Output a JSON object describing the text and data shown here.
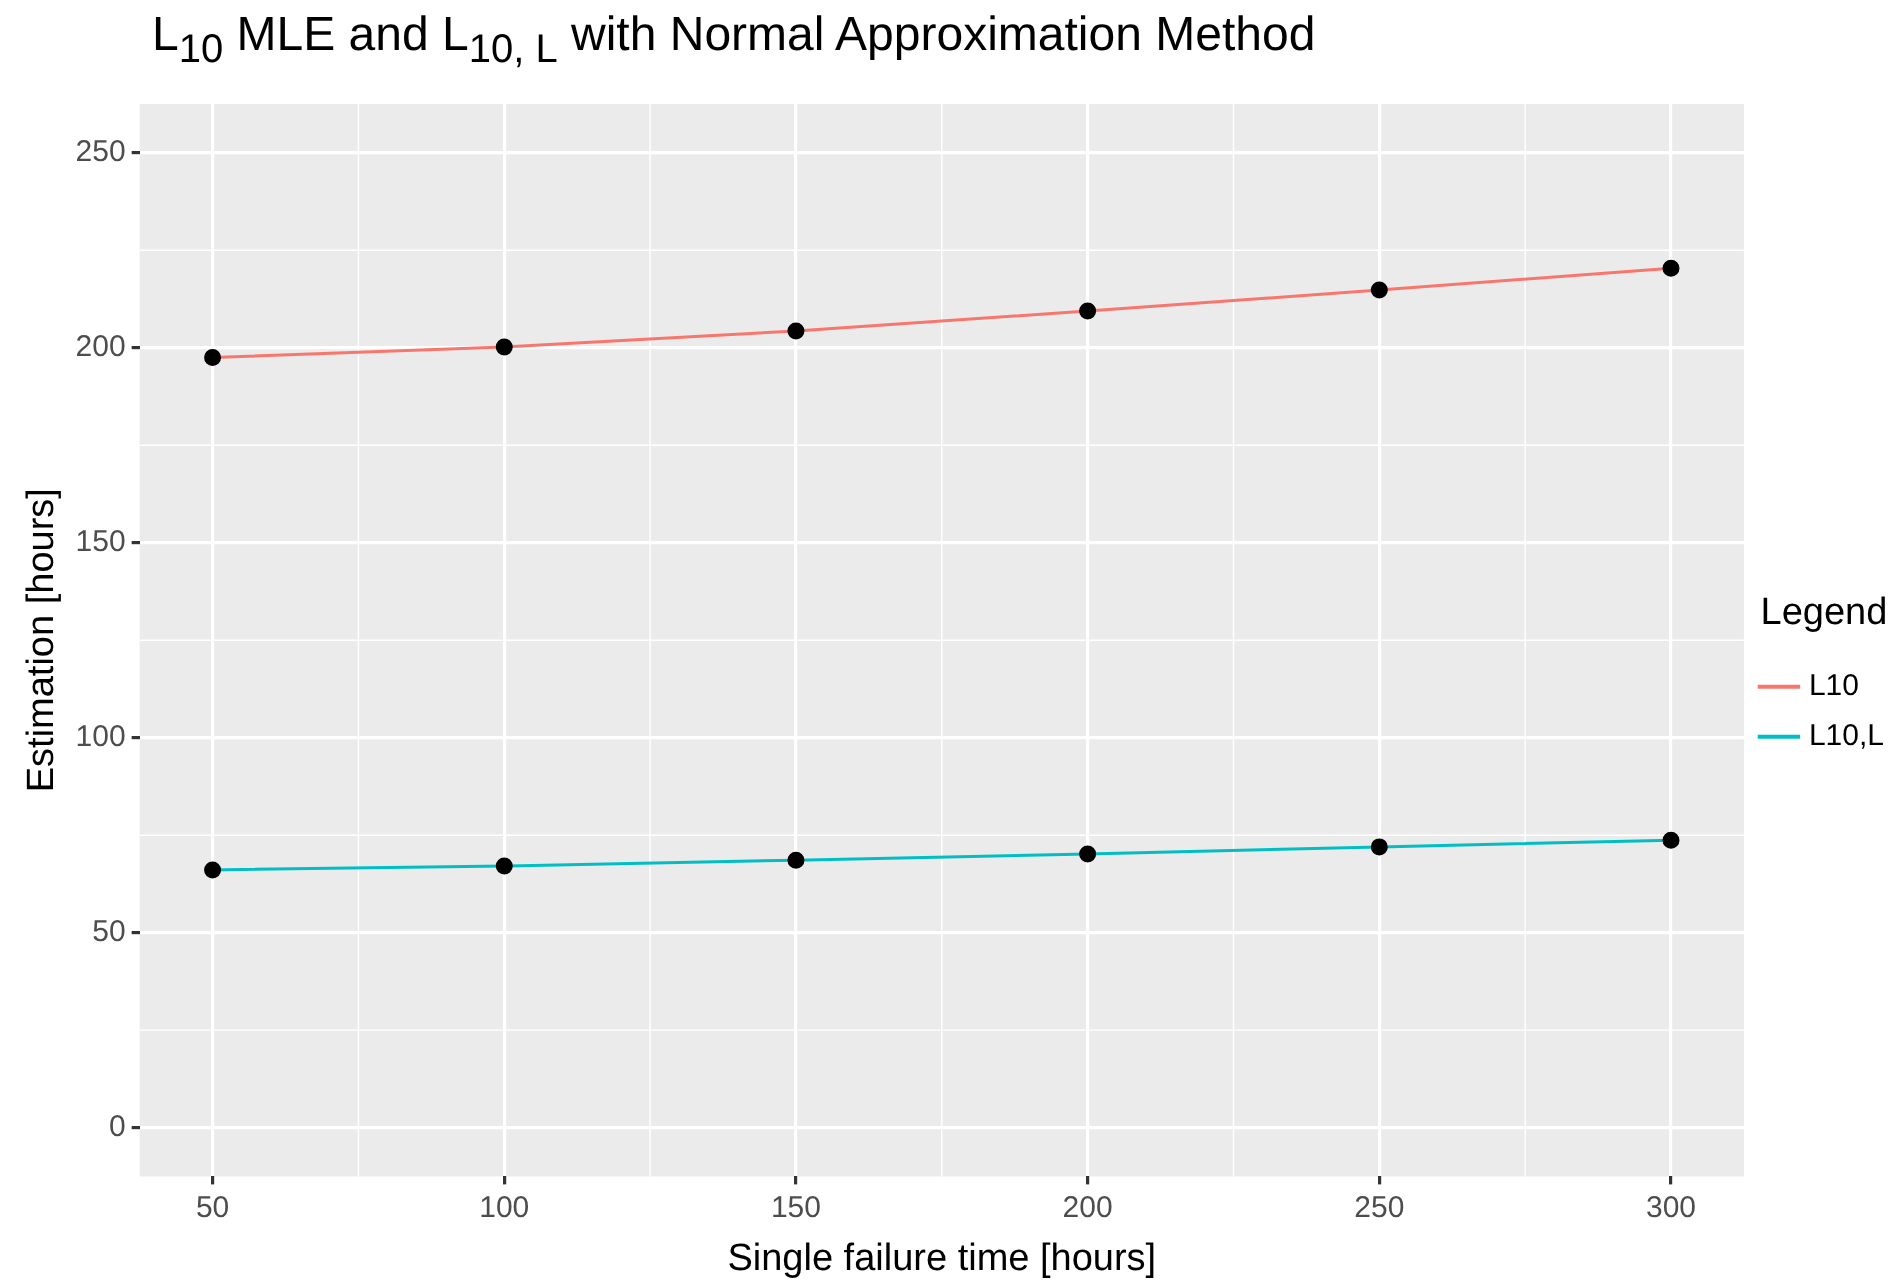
{
  "chart_data": {
    "type": "line",
    "title": "L$_{10}$ MLE and L$_{10, L}$ with Normal Approximation Method",
    "xlabel": "Single failure time [hours]",
    "ylabel": "Estimation [hours]",
    "legend_title": "Legend",
    "x": [
      50,
      100,
      150,
      200,
      250,
      300
    ],
    "series": [
      {
        "name": "L10",
        "color": "#f8766d",
        "values": [
          197.5,
          200.2,
          204.3,
          209.4,
          214.8,
          220.4
        ]
      },
      {
        "name": "L10,L",
        "color": "#00bfc4",
        "values": [
          66.1,
          67.1,
          68.6,
          70.2,
          72.0,
          73.7
        ]
      }
    ],
    "xlim": [
      37.5,
      312.5
    ],
    "ylim": [
      -12.5,
      262.5
    ],
    "xticks": [
      50,
      100,
      150,
      200,
      250,
      300
    ],
    "yticks": [
      0,
      50,
      100,
      150,
      200,
      250
    ],
    "grid": true,
    "legend": "right",
    "marker": "circle",
    "line_style": "solid"
  }
}
